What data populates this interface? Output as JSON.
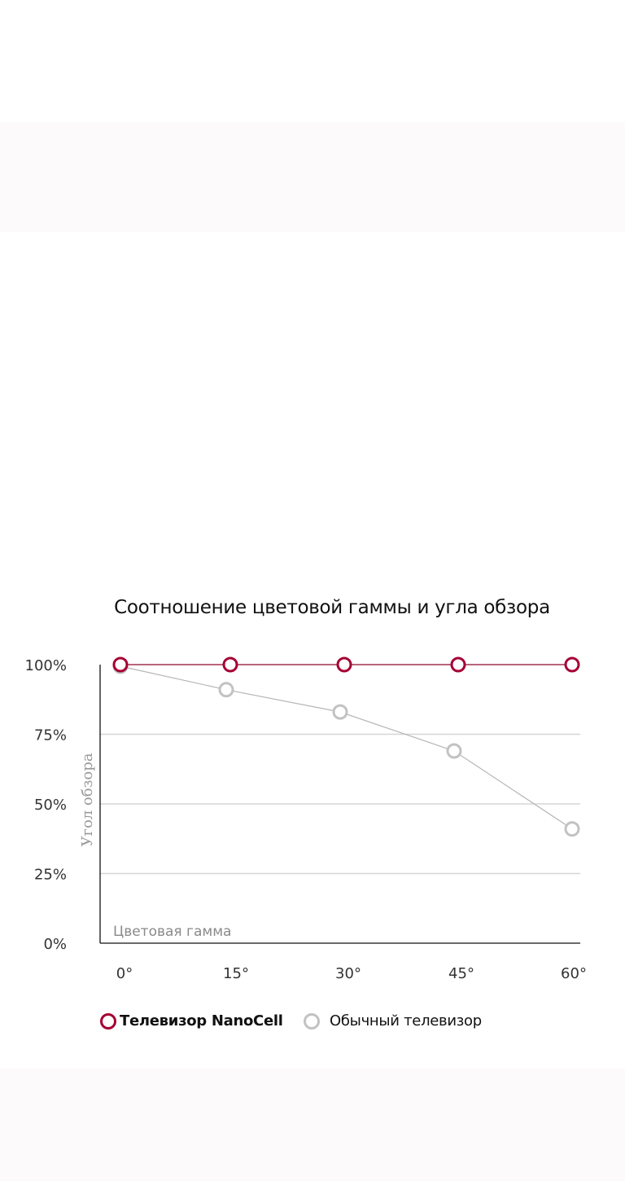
{
  "chart_data": {
    "type": "line",
    "title": "Соотношение цветовой гаммы и угла обзора",
    "ylabel": "Угол обзора",
    "xlabel": "Цветовая гамма",
    "categories": [
      "0°",
      "15°",
      "30°",
      "45°",
      "60°"
    ],
    "y_ticks": [
      "0%",
      "25%",
      "50%",
      "75%",
      "100%"
    ],
    "ylim": [
      0,
      100
    ],
    "grid": true,
    "legend_position": "bottom-left",
    "series": [
      {
        "name": "Телевизор NanoCell",
        "color": "#a50034",
        "values": [
          100,
          100,
          100,
          100,
          100
        ]
      },
      {
        "name": "Обычный телевизор",
        "color": "#c2c2c2",
        "values": [
          100,
          91,
          83,
          69,
          41
        ]
      }
    ]
  }
}
